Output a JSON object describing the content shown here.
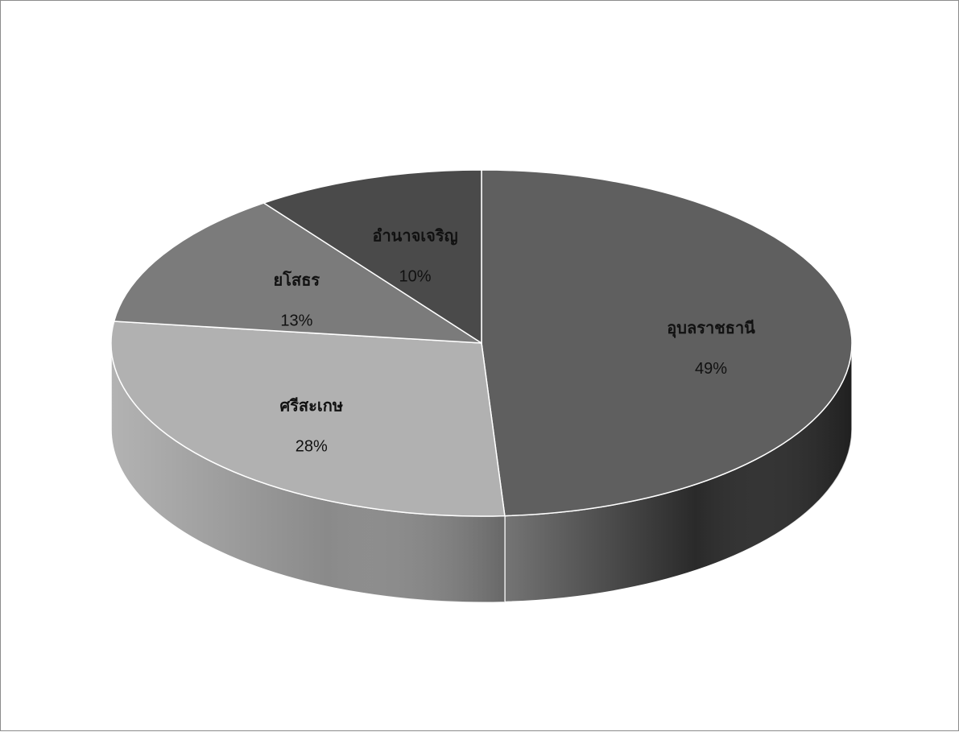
{
  "chart_data": {
    "type": "pie",
    "title": "",
    "categories": [
      "อุบลราชธานี",
      "ศรีสะเกษ",
      "ยโสธร",
      "อำนาจเจริญ"
    ],
    "values": [
      49,
      28,
      13,
      10
    ],
    "percent_labels": [
      "49%",
      "28%",
      "13%",
      "10%"
    ],
    "colors": [
      "#5f5f5f",
      "#b1b1b1",
      "#7b7b7b",
      "#4a4a4a"
    ],
    "side_colors": [
      "#2a2a2a",
      "#8a8a8a",
      "#5a5a5a",
      "#333333"
    ],
    "start": "12 o'clock",
    "direction": "clockwise",
    "style": "3d-tilted",
    "legend": "none"
  }
}
